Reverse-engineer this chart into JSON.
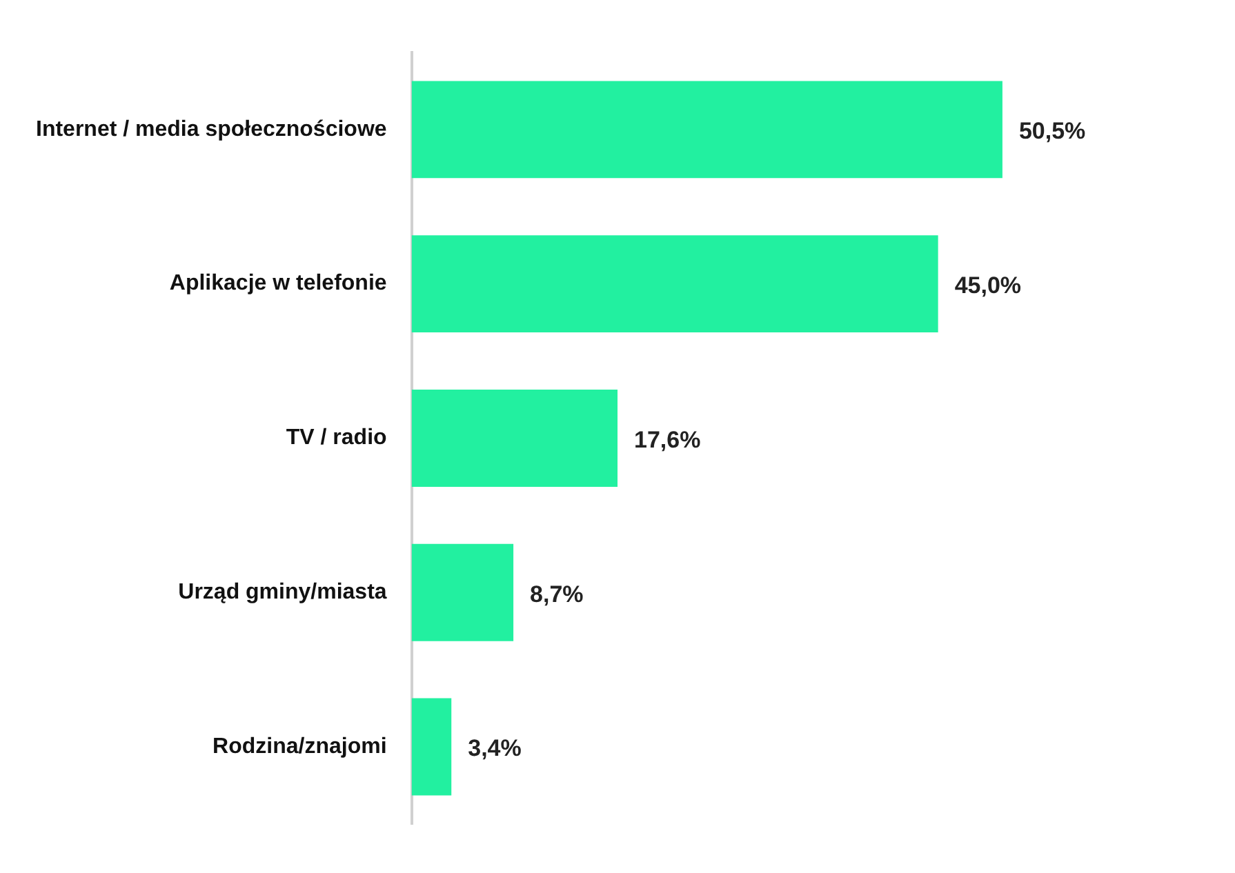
{
  "chart_data": {
    "type": "bar",
    "orientation": "horizontal",
    "categories": [
      "Internet / media społecznościowe",
      "Aplikacje w telefonie",
      "TV / radio",
      "Urząd gminy/miasta",
      "Rodzina/znajomi"
    ],
    "values": [
      50.5,
      45.0,
      17.6,
      8.7,
      3.4
    ],
    "value_labels": [
      "50,5%",
      "45,0%",
      "17,6%",
      "8,7%",
      "3,4%"
    ],
    "color": "#22f0a0"
  }
}
